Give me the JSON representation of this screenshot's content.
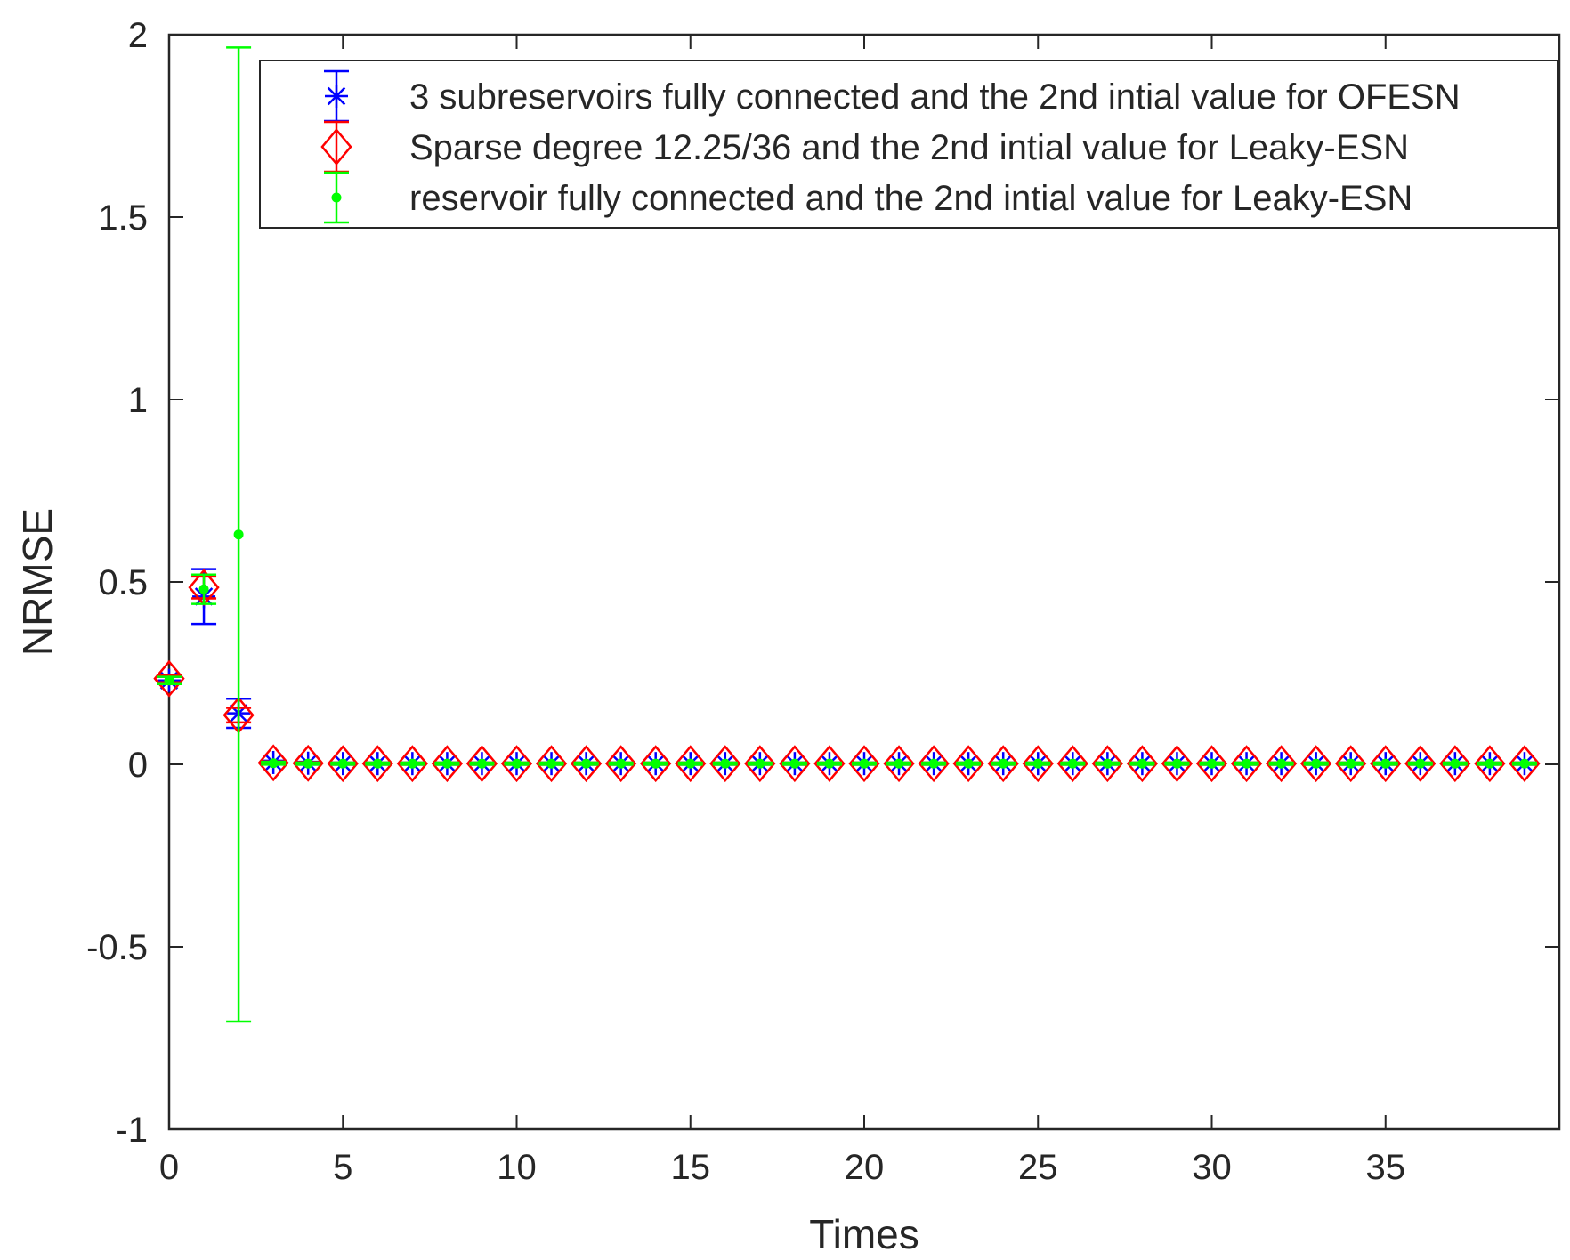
{
  "chart_data": {
    "type": "errorbar",
    "title": "",
    "xlabel": "Times",
    "ylabel": "NRMSE",
    "xlim": [
      0,
      40
    ],
    "ylim": [
      -1,
      2
    ],
    "xticks": [
      "0",
      "5",
      "10",
      "15",
      "20",
      "25",
      "30",
      "35"
    ],
    "yticks": [
      "-1",
      "-0.5",
      "0",
      "0.5",
      "1",
      "1.5",
      "2"
    ],
    "legend_position": "top-right",
    "series": [
      {
        "name": "3 subreservoirs fully connected and the 2nd intial value for OFESN",
        "color": "#0000ff",
        "marker": "asterisk",
        "values": [
          0.23,
          0.46,
          0.14,
          0.005,
          0.003,
          0.002,
          0.002,
          0.002,
          0.002,
          0.002,
          0.002,
          0.002,
          0.002,
          0.002,
          0.002,
          0.002,
          0.002,
          0.002,
          0.002,
          0.002,
          0.002,
          0.002,
          0.002,
          0.002,
          0.002,
          0.002,
          0.002,
          0.002,
          0.002,
          0.002,
          0.002,
          0.002,
          0.002,
          0.002,
          0.002,
          0.002,
          0.002,
          0.002,
          0.002,
          0.002
        ],
        "errors": [
          0.01,
          0.075,
          0.04,
          0.005,
          0.004,
          0.003,
          0.003,
          0.003,
          0.003,
          0.003,
          0.003,
          0.003,
          0.003,
          0.003,
          0.003,
          0.003,
          0.003,
          0.003,
          0.003,
          0.003,
          0.003,
          0.003,
          0.003,
          0.003,
          0.003,
          0.003,
          0.003,
          0.003,
          0.003,
          0.003,
          0.003,
          0.003,
          0.003,
          0.003,
          0.003,
          0.003,
          0.003,
          0.003,
          0.003,
          0.003
        ]
      },
      {
        "name": "Sparse degree 12.25/36 and the 2nd intial value for Leaky-ESN",
        "color": "#ff0000",
        "marker": "diamond",
        "values": [
          0.235,
          0.485,
          0.135,
          0.004,
          0.003,
          0.002,
          0.002,
          0.002,
          0.002,
          0.002,
          0.002,
          0.002,
          0.002,
          0.002,
          0.002,
          0.002,
          0.002,
          0.002,
          0.002,
          0.002,
          0.002,
          0.002,
          0.002,
          0.002,
          0.002,
          0.002,
          0.002,
          0.002,
          0.002,
          0.002,
          0.002,
          0.002,
          0.002,
          0.002,
          0.002,
          0.002,
          0.002,
          0.002,
          0.002,
          0.002
        ],
        "errors": [
          0.01,
          0.03,
          0.02,
          0.004,
          0.003,
          0.003,
          0.003,
          0.003,
          0.003,
          0.003,
          0.003,
          0.003,
          0.003,
          0.003,
          0.003,
          0.003,
          0.003,
          0.003,
          0.003,
          0.003,
          0.003,
          0.003,
          0.003,
          0.003,
          0.003,
          0.003,
          0.003,
          0.003,
          0.003,
          0.003,
          0.003,
          0.003,
          0.003,
          0.003,
          0.003,
          0.003,
          0.003,
          0.003,
          0.003,
          0.003
        ]
      },
      {
        "name": "reservoir fully connected and the 2nd intial value for Leaky-ESN",
        "color": "#00ff00",
        "marker": "dot",
        "values": [
          0.23,
          0.48,
          0.63,
          0.003,
          0.002,
          0.002,
          0.002,
          0.002,
          0.002,
          0.002,
          0.002,
          0.002,
          0.002,
          0.002,
          0.002,
          0.002,
          0.002,
          0.002,
          0.002,
          0.002,
          0.002,
          0.002,
          0.002,
          0.002,
          0.002,
          0.002,
          0.002,
          0.002,
          0.002,
          0.002,
          0.002,
          0.002,
          0.002,
          0.002,
          0.002,
          0.002,
          0.002,
          0.002,
          0.002,
          0.002
        ],
        "errors": [
          0.01,
          0.04,
          1.335,
          0.004,
          0.003,
          0.003,
          0.003,
          0.003,
          0.003,
          0.003,
          0.003,
          0.003,
          0.003,
          0.003,
          0.003,
          0.003,
          0.003,
          0.003,
          0.003,
          0.003,
          0.003,
          0.003,
          0.003,
          0.003,
          0.003,
          0.003,
          0.003,
          0.003,
          0.003,
          0.003,
          0.003,
          0.003,
          0.003,
          0.003,
          0.003,
          0.003,
          0.003,
          0.003,
          0.003,
          0.003
        ]
      }
    ]
  }
}
